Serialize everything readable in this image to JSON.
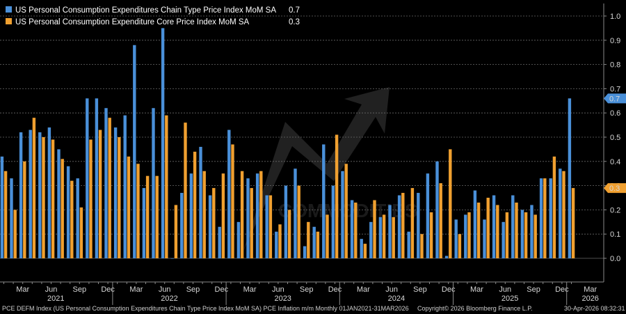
{
  "chart_data": {
    "type": "bar",
    "x_start": "2021-01",
    "ylim": [
      -0.09,
      1.07
    ],
    "yticks": [
      "0.0",
      "0.1",
      "0.2",
      "0.3",
      "0.4",
      "0.5",
      "0.6",
      "0.7",
      "0.8",
      "0.9",
      "1.0"
    ],
    "ytick_values": [
      0,
      0.1,
      0.2,
      0.3,
      0.4,
      0.5,
      0.6,
      0.7,
      0.8,
      0.9,
      1.0
    ],
    "grid": true,
    "legend_position": "top-left",
    "colors": {
      "headline": "#4a90d9",
      "core": "#f0a030",
      "grid": "#6a6a6a",
      "background": "#000000"
    },
    "series": [
      {
        "name": "US Personal Consumption Expenditures Chain Type Price Index MoM SA",
        "last_label": "0.7",
        "values": [
          0.42,
          0.33,
          0.52,
          0.53,
          0.52,
          0.54,
          0.45,
          0.38,
          0.33,
          0.66,
          0.66,
          0.62,
          0.54,
          0.59,
          0.88,
          0.29,
          0.62,
          0.95,
          0.0,
          0.27,
          0.35,
          0.46,
          0.26,
          0.13,
          0.53,
          0.15,
          0.33,
          0.35,
          0.26,
          0.11,
          0.3,
          0.37,
          0.05,
          0.13,
          0.47,
          0.3,
          0.36,
          0.24,
          0.08,
          0.15,
          0.17,
          0.22,
          0.26,
          0.11,
          0.27,
          0.35,
          0.4,
          0.01,
          0.16,
          0.18,
          0.28,
          0.16,
          0.26,
          0.15,
          0.26,
          0.2,
          0.22,
          0.33,
          0.33,
          0.37,
          0.66
        ]
      },
      {
        "name": "US Personal Consumption Expenditure Core Price Index MoM SA",
        "last_label": "0.3",
        "values": [
          0.36,
          0.2,
          0.4,
          0.58,
          0.5,
          0.49,
          0.41,
          0.32,
          0.21,
          0.49,
          0.53,
          0.58,
          0.5,
          0.42,
          0.39,
          0.34,
          0.34,
          0.59,
          0.22,
          0.56,
          0.44,
          0.36,
          0.29,
          0.35,
          0.47,
          0.36,
          0.29,
          0.36,
          0.26,
          0.14,
          0.2,
          0.3,
          0.15,
          0.11,
          0.18,
          0.51,
          0.39,
          0.23,
          0.06,
          0.24,
          0.18,
          0.17,
          0.27,
          0.29,
          0.1,
          0.19,
          0.31,
          0.45,
          0.1,
          0.19,
          0.23,
          0.25,
          0.22,
          0.19,
          0.23,
          0.19,
          0.18,
          0.33,
          0.42,
          0.36,
          0.29
        ]
      }
    ],
    "month_labels": [
      "Mar",
      "Jun",
      "Sep",
      "Dec"
    ],
    "month_ticks": [
      {
        "label": "Mar",
        "i": 2
      },
      {
        "label": "Jun",
        "i": 5
      },
      {
        "label": "Sep",
        "i": 8
      },
      {
        "label": "Dec",
        "i": 11
      },
      {
        "label": "Mar",
        "i": 14
      },
      {
        "label": "Jun",
        "i": 17
      },
      {
        "label": "Sep",
        "i": 20
      },
      {
        "label": "Dec",
        "i": 23
      },
      {
        "label": "Mar",
        "i": 26
      },
      {
        "label": "Jun",
        "i": 29
      },
      {
        "label": "Sep",
        "i": 32
      },
      {
        "label": "Dec",
        "i": 35
      },
      {
        "label": "Mar",
        "i": 38
      },
      {
        "label": "Jun",
        "i": 41
      },
      {
        "label": "Sep",
        "i": 44
      },
      {
        "label": "Dec",
        "i": 47
      },
      {
        "label": "Mar",
        "i": 50
      },
      {
        "label": "Jun",
        "i": 53
      },
      {
        "label": "Sep",
        "i": 56
      },
      {
        "label": "Dec",
        "i": 59
      },
      {
        "label": "Mar",
        "i": 62
      }
    ],
    "year_labels": [
      {
        "label": "2021",
        "i": 5.5
      },
      {
        "label": "2022",
        "i": 17.5
      },
      {
        "label": "2023",
        "i": 29.5
      },
      {
        "label": "2024",
        "i": 41.5
      },
      {
        "label": "2025",
        "i": 53.5
      },
      {
        "label": "2026",
        "i": 62
      }
    ]
  },
  "footer": {
    "left": "PCE DEFM Index (US Personal Consumption Expenditures Chain Type Price Index MoM SA) PCE Inflation m/m Monthly 01JAN2021-31MAR2026",
    "copyright": "Copyright© 2026 Bloomberg Finance L.P.",
    "timestamp": "30-Apr-2026 08:32:31"
  },
  "watermark": "COMMODITIES"
}
